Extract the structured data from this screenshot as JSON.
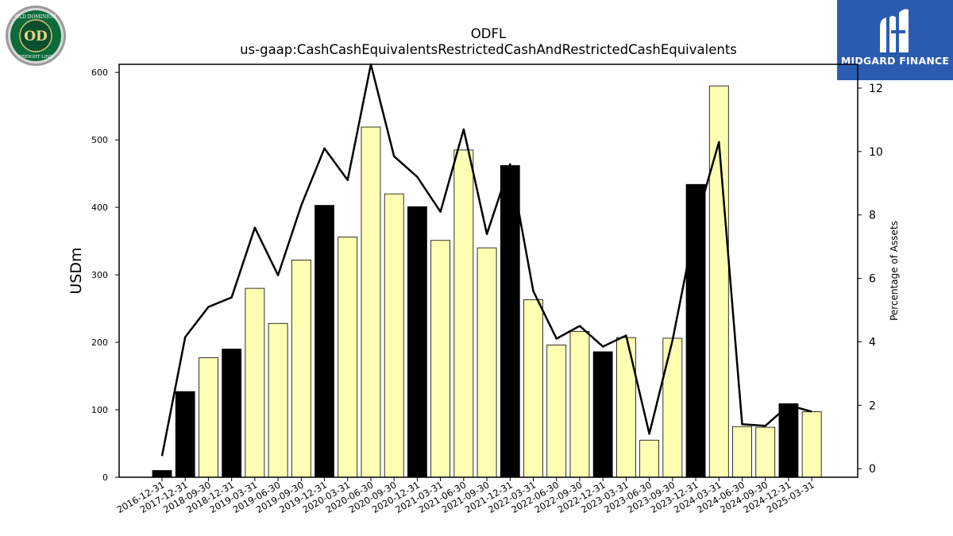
{
  "header": {
    "title": "ODFL",
    "subtitle": "us-gaap:CashCashEquivalentsRestrictedCashAndRestrictedCashEquivalents"
  },
  "logos": {
    "left": {
      "name": "old-dominion-freight-line-logo",
      "text_top": "OLD DOMINION",
      "text_bottom": "FREIGHT LINE",
      "monogram": "OD"
    },
    "right": {
      "name": "midgard-finance-logo",
      "text": "MIDGARD FINANCE",
      "color": "#2b5bb0"
    }
  },
  "chart_data": {
    "type": "bar",
    "ylabel": "USDm",
    "y2label": "Percentage of Assets",
    "ylim": [
      0,
      612
    ],
    "y2lim": [
      -0.27,
      12.75
    ],
    "yticks": [
      0,
      100,
      200,
      300,
      400,
      500,
      600
    ],
    "y2ticks": [
      0,
      2,
      4,
      6,
      8,
      10,
      12
    ],
    "grid": false,
    "colors": {
      "annual": "#000000",
      "quarterly": "#ffffb3",
      "line": "#000000"
    },
    "categories": [
      "2016-12-31",
      "2017-12-31",
      "2018-09-30",
      "2018-12-31",
      "2019-03-31",
      "2019-06-30",
      "2019-09-30",
      "2019-12-31",
      "2020-03-31",
      "2020-06-30",
      "2020-09-30",
      "2020-12-31",
      "2021-03-31",
      "2021-06-30",
      "2021-09-30",
      "2021-12-31",
      "2022-03-31",
      "2022-06-30",
      "2022-09-30",
      "2022-12-31",
      "2023-03-31",
      "2023-06-30",
      "2023-09-30",
      "2023-12-31",
      "2024-03-31",
      "2024-06-30",
      "2024-09-30",
      "2024-12-31",
      "2025-03-31"
    ],
    "series": [
      {
        "type": "bar",
        "values": [
          10,
          127,
          177,
          190,
          280,
          228,
          322,
          403,
          356,
          519,
          420,
          401,
          351,
          485,
          340,
          462,
          263,
          196,
          216,
          186,
          207,
          55,
          206,
          434,
          580,
          75,
          74,
          109,
          97
        ],
        "annual": [
          true,
          true,
          false,
          true,
          false,
          false,
          false,
          true,
          false,
          false,
          false,
          true,
          false,
          false,
          false,
          true,
          false,
          false,
          false,
          true,
          false,
          false,
          false,
          true,
          false,
          false,
          false,
          true,
          false
        ]
      },
      {
        "type": "line",
        "axis": "right",
        "values": [
          0.4,
          4.15,
          5.1,
          5.4,
          7.6,
          6.1,
          8.3,
          10.1,
          9.1,
          12.75,
          9.85,
          9.2,
          8.1,
          10.7,
          7.4,
          9.6,
          5.6,
          4.1,
          4.5,
          3.85,
          4.2,
          1.1,
          4.05,
          7.75,
          10.3,
          1.4,
          1.35,
          2.0,
          1.8
        ]
      }
    ]
  }
}
